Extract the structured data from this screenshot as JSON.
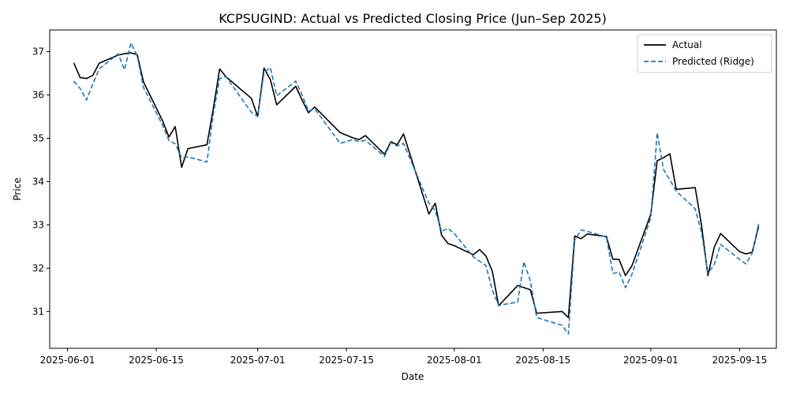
{
  "chart_data": {
    "type": "line",
    "title": "KCPSUGIND: Actual vs Predicted Closing Price (Jun–Sep 2025)",
    "xlabel": "Date",
    "ylabel": "Price",
    "x_range_days": [
      -2.8,
      111.8
    ],
    "ylim": [
      30.15,
      37.5
    ],
    "grid": false,
    "legend_position": "top-right",
    "x_ticks": [
      {
        "day": 0,
        "label": "2025-06-01"
      },
      {
        "day": 14,
        "label": "2025-06-15"
      },
      {
        "day": 30,
        "label": "2025-07-01"
      },
      {
        "day": 44,
        "label": "2025-07-15"
      },
      {
        "day": 61,
        "label": "2025-08-01"
      },
      {
        "day": 75,
        "label": "2025-08-15"
      },
      {
        "day": 92,
        "label": "2025-09-01"
      },
      {
        "day": 106,
        "label": "2025-09-15"
      }
    ],
    "y_ticks": [
      31,
      32,
      33,
      34,
      35,
      36,
      37
    ],
    "x": [
      1,
      2,
      3,
      4,
      5,
      8,
      9,
      10,
      11,
      12,
      15,
      16,
      17,
      18,
      19,
      22,
      23,
      24,
      25,
      29,
      30,
      31,
      32,
      33,
      36,
      37,
      38,
      39,
      43,
      45,
      46,
      47,
      50,
      51,
      52,
      53,
      57,
      58,
      59,
      60,
      61,
      64,
      65,
      66,
      67,
      68,
      71,
      72,
      73,
      74,
      78,
      79,
      80,
      81,
      82,
      85,
      86,
      87,
      88,
      89,
      92,
      93,
      94,
      95,
      96,
      99,
      100,
      101,
      102,
      103,
      106,
      107,
      108,
      109
    ],
    "series": [
      {
        "name": "Actual",
        "color": "#000000",
        "style": "solid",
        "values": [
          36.74,
          36.4,
          36.38,
          36.45,
          36.73,
          36.92,
          36.95,
          36.97,
          36.93,
          36.3,
          35.4,
          35.03,
          35.27,
          34.33,
          34.76,
          34.85,
          35.68,
          36.6,
          36.42,
          35.92,
          35.5,
          36.62,
          36.35,
          35.77,
          36.2,
          35.88,
          35.59,
          35.72,
          35.13,
          35.01,
          34.97,
          35.06,
          34.63,
          34.92,
          34.85,
          35.1,
          33.25,
          33.5,
          32.76,
          32.57,
          32.52,
          32.31,
          32.43,
          32.28,
          31.93,
          31.13,
          31.6,
          31.55,
          31.5,
          30.96,
          31.0,
          30.86,
          32.74,
          32.68,
          32.79,
          32.73,
          32.21,
          32.2,
          31.83,
          32.05,
          33.25,
          34.48,
          34.55,
          34.64,
          33.82,
          33.86,
          32.98,
          31.83,
          32.48,
          32.8,
          32.38,
          32.33,
          32.37,
          32.97
        ]
      },
      {
        "name": "Predicted (Ridge)",
        "color": "#1f77b4",
        "style": "dashed",
        "values": [
          36.32,
          36.15,
          35.88,
          36.25,
          36.6,
          36.95,
          36.58,
          37.2,
          36.9,
          36.17,
          35.3,
          34.95,
          34.87,
          34.55,
          34.57,
          34.45,
          35.55,
          36.38,
          36.42,
          35.6,
          35.5,
          36.52,
          36.63,
          35.98,
          36.32,
          36.0,
          35.63,
          35.68,
          34.88,
          34.97,
          34.92,
          34.95,
          34.58,
          34.9,
          34.82,
          34.88,
          33.5,
          33.33,
          32.85,
          32.92,
          32.8,
          32.26,
          32.16,
          32.06,
          31.49,
          31.14,
          31.22,
          32.15,
          31.7,
          30.86,
          30.68,
          30.48,
          32.65,
          32.88,
          32.85,
          32.72,
          31.88,
          31.91,
          31.55,
          31.85,
          33.17,
          35.13,
          34.28,
          34.04,
          33.78,
          33.37,
          32.82,
          31.88,
          32.08,
          32.55,
          32.2,
          32.1,
          32.35,
          33.02
        ]
      }
    ]
  }
}
